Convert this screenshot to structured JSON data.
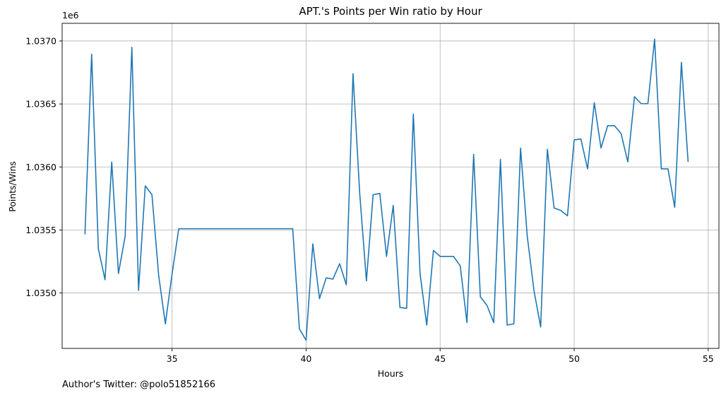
{
  "chart_data": {
    "type": "line",
    "title": "APT.'s Points per Win ratio by Hour",
    "xlabel": "Hours",
    "ylabel": "Points/Wins",
    "y_offset_label": "1e6",
    "xlim": [
      30.9,
      55.4
    ],
    "ylim": [
      1.03456,
      1.03714
    ],
    "x_ticks": [
      35,
      40,
      45,
      50,
      55
    ],
    "y_ticks": [
      1.035,
      1.0355,
      1.036,
      1.0365,
      1.037
    ],
    "x_tick_labels": [
      "35",
      "40",
      "45",
      "50",
      "55"
    ],
    "y_tick_labels": [
      "1.0350",
      "1.0355",
      "1.0360",
      "1.0365",
      "1.0370"
    ],
    "grid": true,
    "line_color": "#1f77b4",
    "series": [
      {
        "x": [
          31.75,
          32.0,
          32.25,
          32.5,
          32.75,
          33.0,
          33.25,
          33.5,
          33.75,
          34.0,
          34.25,
          34.5,
          34.75,
          35.0,
          35.25,
          35.5,
          36.0,
          36.5,
          37.0,
          37.5,
          38.0,
          38.5,
          39.0,
          39.5,
          39.75,
          40.0,
          40.25,
          40.5,
          40.75,
          41.0,
          41.25,
          41.5,
          41.75,
          42.0,
          42.25,
          42.5,
          42.75,
          43.0,
          43.25,
          43.5,
          43.75,
          44.0,
          44.25,
          44.5,
          44.75,
          45.0,
          45.25,
          45.5,
          45.75,
          46.0,
          46.25,
          46.5,
          46.75,
          47.0,
          47.25,
          47.5,
          47.75,
          48.0,
          48.25,
          48.5,
          48.75,
          49.0,
          49.25,
          49.5,
          49.75,
          50.0,
          50.25,
          50.5,
          50.75,
          51.0,
          51.25,
          51.5,
          51.75,
          52.0,
          52.25,
          52.5,
          52.75,
          53.0,
          53.25,
          53.5,
          53.75,
          54.0,
          54.25
        ],
        "y": [
          1.035465,
          1.036895,
          1.035352,
          1.035105,
          1.03604,
          1.035155,
          1.03545,
          1.03695,
          1.03502,
          1.03585,
          1.03578,
          1.03514,
          1.034755,
          1.03515,
          1.03551,
          1.03551,
          1.03551,
          1.03551,
          1.03551,
          1.03551,
          1.03551,
          1.03551,
          1.03551,
          1.03551,
          1.034715,
          1.034625,
          1.03539,
          1.034955,
          1.03512,
          1.03511,
          1.035232,
          1.035065,
          1.03674,
          1.03579,
          1.035095,
          1.03578,
          1.03579,
          1.03529,
          1.035695,
          1.034885,
          1.034878,
          1.03642,
          1.035155,
          1.034745,
          1.035338,
          1.03529,
          1.03529,
          1.03529,
          1.035215,
          1.034765,
          1.0361,
          1.03497,
          1.0349,
          1.034765,
          1.03606,
          1.034745,
          1.034755,
          1.03615,
          1.03545,
          1.03502,
          1.03473,
          1.03614,
          1.035675,
          1.035655,
          1.035612,
          1.036215,
          1.036222,
          1.035985,
          1.03651,
          1.03615,
          1.036328,
          1.036328,
          1.036265,
          1.03604,
          1.036558,
          1.036502,
          1.036502,
          1.037015,
          1.035985,
          1.035985,
          1.03568,
          1.03683,
          1.03604
        ]
      }
    ]
  },
  "footer": {
    "author_text": "Author's Twitter: @polo51852166"
  }
}
